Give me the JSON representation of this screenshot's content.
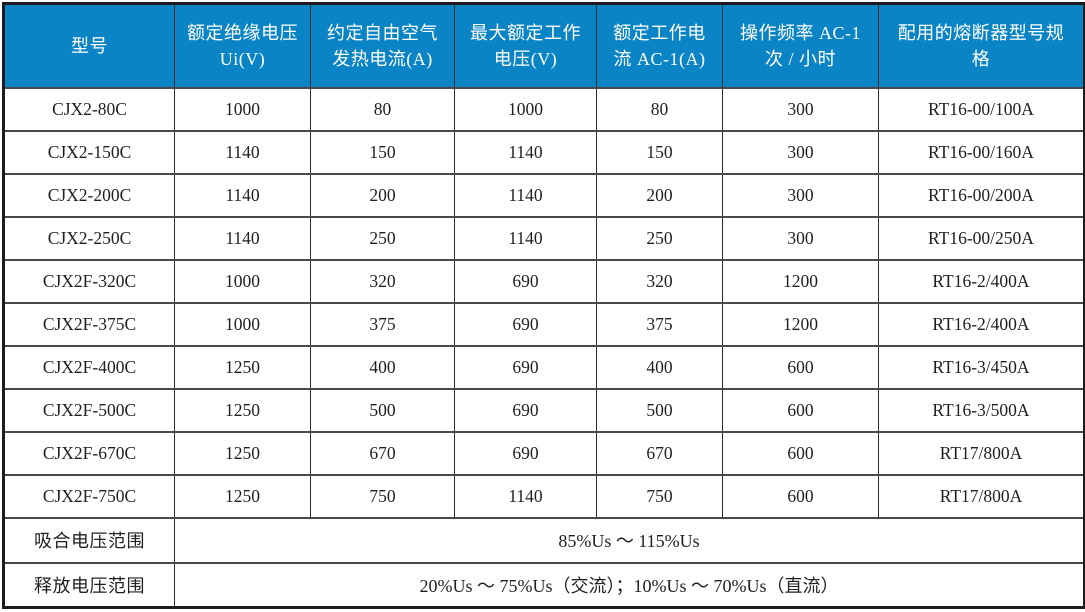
{
  "table": {
    "headers": [
      "型号",
      "额定绝缘电压 Ui(V)",
      "约定自由空气发热电流(A)",
      "最大额定工作电压(V)",
      "额定工作电流 AC-1(A)",
      "操作频率 AC-1 次 / 小时",
      "配用的熔断器型号规格"
    ],
    "rows": [
      [
        "CJX2-80C",
        "1000",
        "80",
        "1000",
        "80",
        "300",
        "RT16-00/100A"
      ],
      [
        "CJX2-150C",
        "1140",
        "150",
        "1140",
        "150",
        "300",
        "RT16-00/160A"
      ],
      [
        "CJX2-200C",
        "1140",
        "200",
        "1140",
        "200",
        "300",
        "RT16-00/200A"
      ],
      [
        "CJX2-250C",
        "1140",
        "250",
        "1140",
        "250",
        "300",
        "RT16-00/250A"
      ],
      [
        "CJX2F-320C",
        "1000",
        "320",
        "690",
        "320",
        "1200",
        "RT16-2/400A"
      ],
      [
        "CJX2F-375C",
        "1000",
        "375",
        "690",
        "375",
        "1200",
        "RT16-2/400A"
      ],
      [
        "CJX2F-400C",
        "1250",
        "400",
        "690",
        "400",
        "600",
        "RT16-3/450A"
      ],
      [
        "CJX2F-500C",
        "1250",
        "500",
        "690",
        "500",
        "600",
        "RT16-3/500A"
      ],
      [
        "CJX2F-670C",
        "1250",
        "670",
        "690",
        "670",
        "600",
        "RT17/800A"
      ],
      [
        "CJX2F-750C",
        "1250",
        "750",
        "1140",
        "750",
        "600",
        "RT17/800A"
      ]
    ],
    "footer_rows": [
      {
        "label": "吸合电压范围",
        "value": "85%Us ～ 115%Us"
      },
      {
        "label": "释放电压范围",
        "value": "20%Us ～ 75%Us（交流）；10%Us ～ 70%Us（直流）"
      }
    ],
    "colors": {
      "header_bg": "#0b84c5",
      "header_text": "#ffffff",
      "body_text": "#1f1f1f",
      "grid_line": "#4a4a4a",
      "outer_border": "#1c1c1c"
    }
  }
}
